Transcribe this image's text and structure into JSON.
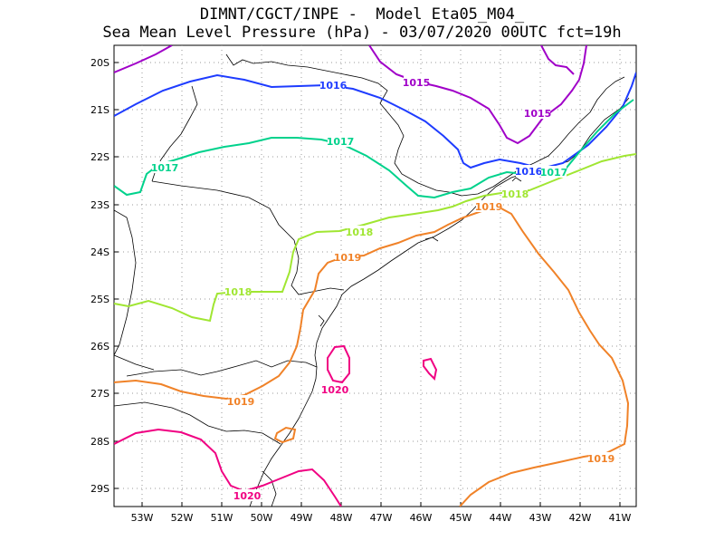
{
  "title": {
    "line1": "DIMNT/CGCT/INPE -  Model Eta05_M04_",
    "line2": "Sea Mean Level Pressure (hPa) - 03/07/2020 00UTC fct=19h"
  },
  "axes": {
    "lat_ticks": [
      "20S",
      "21S",
      "22S",
      "23S",
      "24S",
      "25S",
      "26S",
      "27S",
      "28S",
      "29S"
    ],
    "lon_ticks": [
      "53W",
      "52W",
      "51W",
      "50W",
      "49W",
      "48W",
      "47W",
      "46W",
      "45W",
      "44W",
      "43W",
      "42W",
      "41W"
    ],
    "lat_range": [
      -29.6,
      -19.6
    ],
    "lon_range": [
      -53.6,
      -40.6
    ]
  },
  "isobars": [
    {
      "name": "isobar-1015",
      "level": 1015,
      "color": "#a000c8",
      "labels": [
        "1015",
        "1015"
      ]
    },
    {
      "name": "isobar-1016",
      "level": 1016,
      "color": "#1e3cff",
      "labels": [
        "1016",
        "1016"
      ]
    },
    {
      "name": "isobar-1017",
      "level": 1017,
      "color": "#00d28c",
      "labels": [
        "1017",
        "1017",
        "1017"
      ]
    },
    {
      "name": "isobar-1018",
      "level": 1018,
      "color": "#a0e632",
      "labels": [
        "1018",
        "1018",
        "1018"
      ]
    },
    {
      "name": "isobar-1019",
      "level": 1019,
      "color": "#f08228",
      "labels": [
        "1019",
        "1019",
        "1019",
        "1019"
      ]
    },
    {
      "name": "isobar-1020",
      "level": 1020,
      "color": "#f00082",
      "labels": [
        "1020",
        "1020"
      ]
    }
  ]
}
